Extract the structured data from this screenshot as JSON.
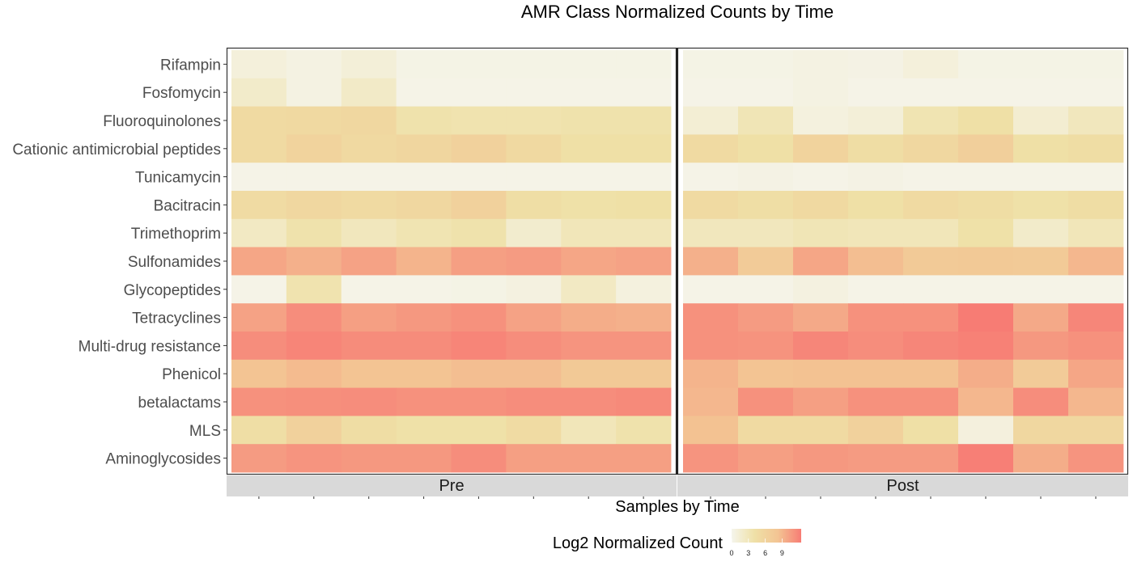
{
  "chart_data": {
    "type": "heatmap",
    "title": "AMR Class Normalized Counts by Time",
    "xlabel": "Samples by Time",
    "ylabel": "",
    "rows": [
      "Rifampin",
      "Fosfomycin",
      "Fluoroquinolones",
      "Cationic antimicrobial peptides",
      "Tunicamycin",
      "Bacitracin",
      "Trimethoprim",
      "Sulfonamides",
      "Glycopeptides",
      "Tetracyclines",
      "Multi-drug resistance",
      "Phenicol",
      "betalactams",
      "MLS",
      "Aminoglycosides"
    ],
    "facets": [
      {
        "label": "Pre",
        "samples": 8,
        "values": [
          [
            1.0,
            0.6,
            1.2,
            0.4,
            0.4,
            0.4,
            0.4,
            0.4
          ],
          [
            2.0,
            0.6,
            2.2,
            0.3,
            0.3,
            0.3,
            0.3,
            0.3
          ],
          [
            5.0,
            5.2,
            5.4,
            3.8,
            3.6,
            3.6,
            3.8,
            3.8
          ],
          [
            5.0,
            6.0,
            5.2,
            5.6,
            6.4,
            5.2,
            4.2,
            4.2
          ],
          [
            0.3,
            0.3,
            0.3,
            0.3,
            0.3,
            0.3,
            0.3,
            0.3
          ],
          [
            4.8,
            5.4,
            5.0,
            5.4,
            6.4,
            4.4,
            4.0,
            4.2
          ],
          [
            2.4,
            3.8,
            2.8,
            3.4,
            3.8,
            1.8,
            3.0,
            3.0
          ],
          [
            10.0,
            9.4,
            10.2,
            9.2,
            10.4,
            10.6,
            10.0,
            10.2
          ],
          [
            0.3,
            3.6,
            0.3,
            0.3,
            0.4,
            0.7,
            2.4,
            0.8
          ],
          [
            10.2,
            11.4,
            10.4,
            10.8,
            11.2,
            10.2,
            9.6,
            9.4
          ],
          [
            11.4,
            11.9,
            11.5,
            11.5,
            11.9,
            11.4,
            11.0,
            11.0
          ],
          [
            8.2,
            8.8,
            8.2,
            8.2,
            8.6,
            8.6,
            7.6,
            7.6
          ],
          [
            11.2,
            11.3,
            11.4,
            11.2,
            11.2,
            11.4,
            11.4,
            11.6
          ],
          [
            4.4,
            6.4,
            4.6,
            4.0,
            4.0,
            4.8,
            3.0,
            3.8
          ],
          [
            10.6,
            11.0,
            10.8,
            10.8,
            11.4,
            10.4,
            10.4,
            10.4
          ]
        ]
      },
      {
        "label": "Post",
        "samples": 8,
        "values": [
          [
            0.4,
            0.4,
            0.6,
            0.5,
            1.0,
            0.4,
            0.4,
            0.4
          ],
          [
            0.3,
            0.3,
            0.6,
            0.3,
            0.3,
            0.3,
            0.3,
            0.3
          ],
          [
            1.4,
            3.2,
            0.8,
            1.2,
            3.4,
            4.2,
            1.6,
            2.8
          ],
          [
            5.0,
            4.2,
            6.0,
            4.6,
            5.4,
            6.6,
            4.2,
            4.6
          ],
          [
            0.3,
            0.5,
            0.3,
            0.5,
            0.3,
            0.3,
            0.3,
            0.3
          ],
          [
            5.0,
            4.4,
            5.2,
            4.2,
            5.0,
            4.6,
            4.0,
            4.6
          ],
          [
            2.8,
            2.8,
            3.2,
            3.0,
            3.0,
            4.0,
            2.0,
            3.0
          ],
          [
            9.4,
            7.2,
            10.0,
            8.6,
            7.4,
            7.6,
            7.4,
            9.0
          ],
          [
            0.3,
            0.3,
            0.7,
            0.3,
            0.3,
            0.3,
            0.3,
            0.3
          ],
          [
            11.2,
            10.6,
            9.8,
            11.2,
            11.2,
            12.4,
            9.8,
            11.8
          ],
          [
            11.2,
            11.1,
            11.8,
            11.4,
            11.8,
            12.1,
            10.8,
            11.2
          ],
          [
            9.2,
            8.2,
            8.4,
            8.4,
            8.4,
            9.6,
            7.2,
            10.0
          ],
          [
            9.0,
            11.2,
            10.4,
            11.2,
            11.2,
            9.0,
            11.4,
            9.0
          ],
          [
            8.4,
            5.0,
            5.0,
            6.4,
            4.2,
            0.9,
            5.4,
            5.4
          ],
          [
            11.0,
            10.4,
            10.8,
            10.6,
            10.6,
            12.2,
            9.6,
            11.0
          ]
        ]
      }
    ],
    "legend": {
      "title": "Log2 Normalized Count",
      "position": "bottom",
      "ticks": [
        0,
        3,
        6,
        9
      ],
      "range": [
        0,
        12.4
      ],
      "colors": [
        "#f5f5ec",
        "#efe0a6",
        "#f3c493",
        "#f77c74"
      ]
    }
  }
}
